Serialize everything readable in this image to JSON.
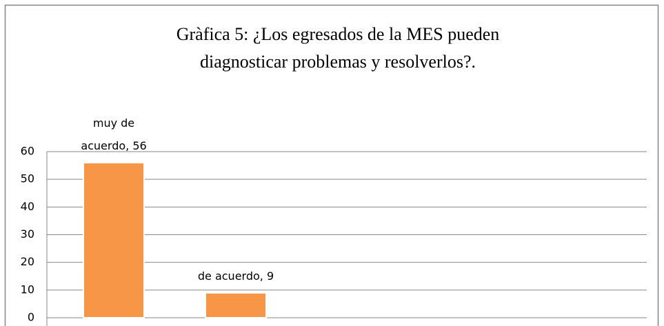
{
  "chart_data": {
    "type": "bar",
    "title": [
      "Gràfica 5: ¿Los egresados de la MES pueden",
      "diagnosticar problemas y resolverlos?."
    ],
    "values": [
      56,
      9
    ],
    "value_labels": [
      "muy de acuerdo, 56",
      "de acuerdo, 9"
    ],
    "color": "#f79646",
    "ylim": [
      0,
      60
    ],
    "yticks": [
      0,
      10,
      20,
      30,
      40,
      50,
      60
    ],
    "grid": true
  }
}
